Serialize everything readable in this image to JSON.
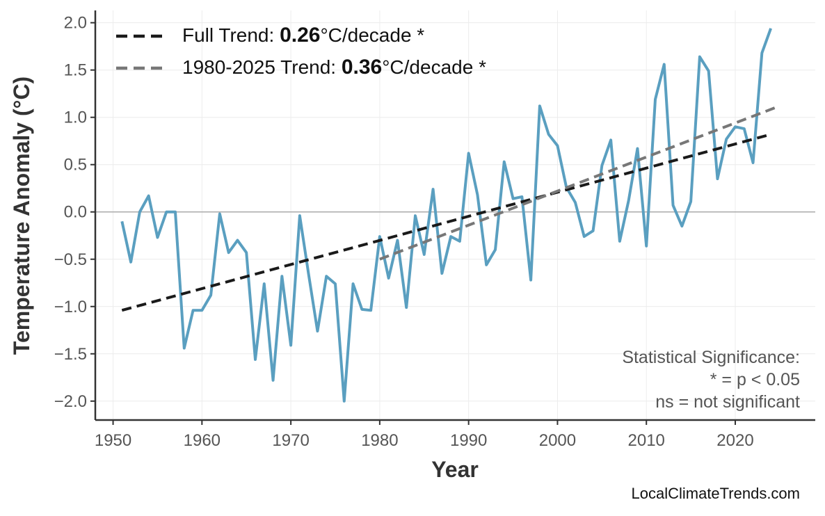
{
  "chart_data": {
    "type": "line",
    "title": "",
    "xlabel": "Year",
    "ylabel": "Temperature Anomaly (°C)",
    "xlim": [
      1948,
      2029
    ],
    "ylim": [
      -2.2,
      2.13
    ],
    "xticks": [
      1950,
      1960,
      1970,
      1980,
      1990,
      2000,
      2010,
      2020
    ],
    "yticks": [
      2.0,
      1.5,
      1.0,
      0.5,
      0.0,
      -0.5,
      -1.0,
      -1.5,
      -2.0
    ],
    "ytick_labels": [
      "2.0",
      "1.5",
      "1.0",
      "0.5",
      "0.0",
      "−0.5",
      "−1.0",
      "−1.5",
      "−2.0"
    ],
    "grid": true,
    "zero_line": true,
    "series": [
      {
        "color": "#5a9fc0",
        "x": [
          1951,
          1952,
          1953,
          1954,
          1955,
          1956,
          1957,
          1958,
          1959,
          1960,
          1961,
          1962,
          1963,
          1964,
          1965,
          1966,
          1967,
          1968,
          1969,
          1970,
          1971,
          1972,
          1973,
          1974,
          1975,
          1976,
          1977,
          1978,
          1979,
          1980,
          1981,
          1982,
          1983,
          1984,
          1985,
          1986,
          1987,
          1988,
          1989,
          1990,
          1991,
          1992,
          1993,
          1994,
          1995,
          1996,
          1997,
          1998,
          1999,
          2000,
          2001,
          2002,
          2003,
          2004,
          2005,
          2006,
          2007,
          2008,
          2009,
          2010,
          2011,
          2012,
          2013,
          2014,
          2015,
          2016,
          2017,
          2018,
          2019,
          2020,
          2021,
          2022,
          2023,
          2024
        ],
        "y": [
          -0.1,
          -0.53,
          0.0,
          0.17,
          -0.27,
          0.0,
          0.0,
          -1.44,
          -1.04,
          -1.04,
          -0.88,
          -0.02,
          -0.43,
          -0.3,
          -0.43,
          -1.56,
          -0.76,
          -1.78,
          -0.68,
          -1.41,
          -0.04,
          -0.66,
          -1.26,
          -0.68,
          -0.76,
          -2.0,
          -0.76,
          -1.03,
          -1.04,
          -0.26,
          -0.7,
          -0.3,
          -1.01,
          -0.04,
          -0.45,
          0.24,
          -0.65,
          -0.26,
          -0.31,
          0.62,
          0.18,
          -0.56,
          -0.4,
          0.53,
          0.14,
          0.16,
          -0.72,
          1.12,
          0.82,
          0.7,
          0.26,
          0.1,
          -0.26,
          -0.2,
          0.49,
          0.76,
          -0.31,
          0.12,
          0.67,
          -0.36,
          1.19,
          1.56,
          0.07,
          -0.15,
          0.11,
          1.64,
          1.49,
          0.35,
          0.77,
          0.9,
          0.88,
          0.52,
          1.68,
          1.94
        ]
      }
    ],
    "trends": [
      {
        "label_prefix": "Full Trend: ",
        "value": "0.26",
        "label_suffix": "°C/decade *",
        "color": "#1a1a1a",
        "x": [
          1951,
          2024
        ],
        "y": [
          -1.04,
          0.82
        ]
      },
      {
        "label_prefix": "1980-2025 Trend: ",
        "value": "0.36",
        "label_suffix": "°C/decade *",
        "color": "#777777",
        "x": [
          1980,
          2025
        ],
        "y": [
          -0.5,
          1.12
        ]
      }
    ],
    "legend_position": "top-left",
    "annotation": [
      "Statistical Significance:",
      "* = p < 0.05",
      "ns = not significant"
    ],
    "credit": "LocalClimateTrends.com"
  }
}
